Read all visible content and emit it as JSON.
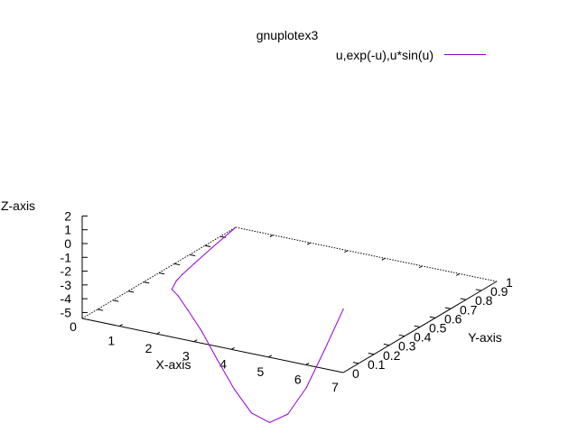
{
  "chart_data": {
    "type": "line",
    "title": "gnuplotex3",
    "xlabel": "X-axis",
    "ylabel": "Y-axis",
    "zlabel": "Z-axis",
    "xlim": [
      0,
      7
    ],
    "ylim": [
      0,
      1
    ],
    "zlim": [
      -5,
      2
    ],
    "xticks": [
      "0",
      "1",
      "2",
      "3",
      "4",
      "5",
      "6",
      "7"
    ],
    "yticks": [
      "0",
      "0.1",
      "0.2",
      "0.3",
      "0.4",
      "0.5",
      "0.6",
      "0.7",
      "0.8",
      "0.9",
      "1"
    ],
    "zticks": [
      "2",
      "1",
      "0",
      "-1",
      "-2",
      "-3",
      "-4",
      "-5"
    ],
    "legend": "top-right",
    "series": [
      {
        "name": "u,exp(-u),u*sin(u)",
        "color": "#9400d3",
        "x": [
          0,
          0.25,
          0.5,
          0.75,
          1.0,
          1.5,
          2.0,
          2.5,
          3.0,
          3.5,
          4.0,
          4.5,
          5.0,
          5.5,
          6.0,
          6.5,
          7.0
        ],
        "y": [
          1.0,
          0.78,
          0.61,
          0.47,
          0.37,
          0.22,
          0.14,
          0.08,
          0.05,
          0.03,
          0.02,
          0.01,
          0.007,
          0.004,
          0.002,
          0.002,
          0.001
        ],
        "z": [
          0,
          0.06,
          0.24,
          0.51,
          0.84,
          1.5,
          1.82,
          1.5,
          0.42,
          -1.23,
          -3.03,
          -4.4,
          -4.79,
          -3.88,
          -1.68,
          1.4,
          4.6
        ]
      }
    ]
  }
}
